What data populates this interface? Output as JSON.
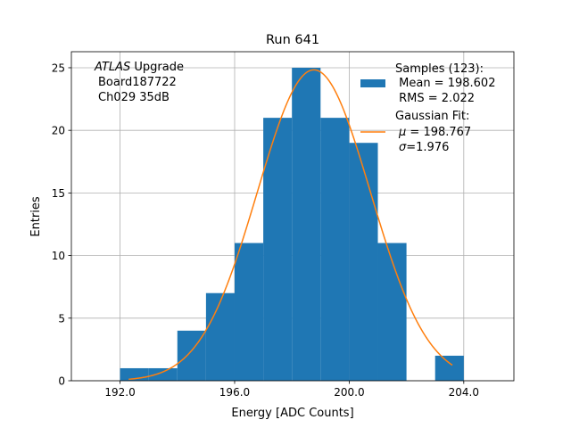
{
  "chart_data": {
    "type": "bar",
    "title": "Run 641",
    "xlabel": "Energy [ADC Counts]",
    "ylabel": "Entries",
    "xlim": [
      190.3,
      205.75
    ],
    "ylim": [
      0,
      26.28
    ],
    "grid": true,
    "xticks": [
      192.0,
      196.0,
      200.0,
      204.0
    ],
    "xtick_labels": [
      "192.0",
      "196.0",
      "200.0",
      "204.0"
    ],
    "yticks": [
      0,
      5,
      10,
      15,
      20,
      25
    ],
    "ytick_labels": [
      "0",
      "5",
      "10",
      "15",
      "20",
      "25"
    ],
    "bin_edges": [
      192,
      193,
      194,
      195,
      196,
      197,
      198,
      199,
      200,
      201,
      202,
      203,
      204
    ],
    "values": [
      1,
      1,
      4,
      7,
      11,
      21,
      25,
      21,
      19,
      11,
      0,
      2
    ],
    "bar_color": "#1f77b4",
    "fit": {
      "mu": 198.767,
      "sigma": 1.976,
      "n": 123,
      "x_range": [
        192.3,
        203.6
      ],
      "color": "#ff7f0e"
    },
    "annotation": {
      "italic": "ATLAS",
      "line1_rest": " Upgrade",
      "line2": "Board187722",
      "line3": "Ch029 35dB"
    },
    "legend": {
      "placement": "top-right",
      "samples_title": "Samples (123):",
      "samples_mean": " Mean = 198.602",
      "samples_rms": " RMS = 2.022",
      "fit_title": "Gaussian Fit:",
      "fit_mu_sym": "μ",
      "fit_mu_val": " = 198.767",
      "fit_sigma_sym": "σ",
      "fit_sigma_val": "=1.976"
    }
  }
}
